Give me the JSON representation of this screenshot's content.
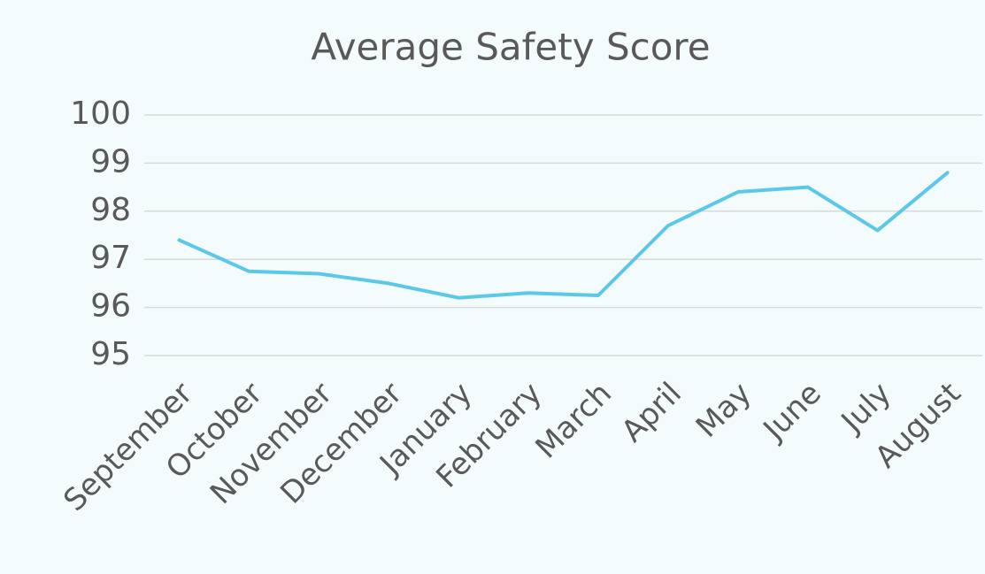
{
  "chart_data": {
    "type": "line",
    "title": "Average Safety Score",
    "categories": [
      "September",
      "October",
      "November",
      "December",
      "January",
      "February",
      "March",
      "April",
      "May",
      "June",
      "July",
      "August"
    ],
    "series": [
      {
        "name": "Average Safety Score",
        "color": "#5bc8ea",
        "values": [
          97.4,
          96.75,
          96.7,
          96.5,
          96.2,
          96.3,
          96.25,
          97.7,
          98.4,
          98.5,
          97.6,
          98.8
        ]
      }
    ],
    "ylim": [
      95,
      100
    ],
    "yticks": [
      95,
      96,
      97,
      98,
      99,
      100
    ],
    "grid": true
  }
}
